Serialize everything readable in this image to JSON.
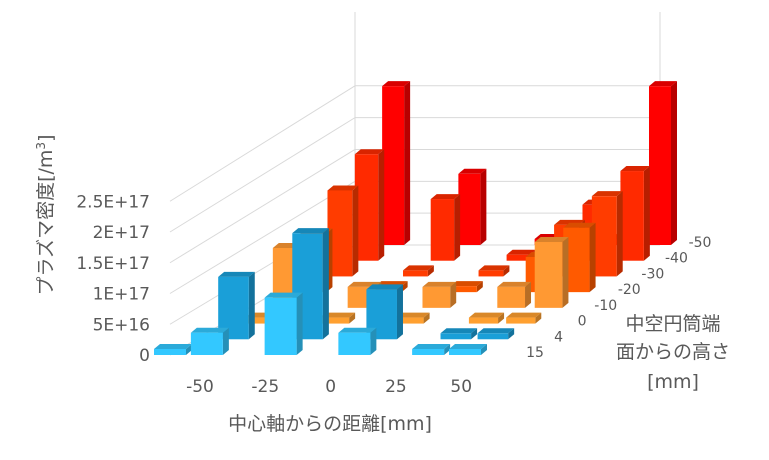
{
  "chart_data": {
    "type": "bar3d",
    "xlabel": "中心軸からの距離[mm]",
    "ylabel_prefix": "プラズマ密度[/m",
    "ylabel_sup": "3",
    "ylabel_suffix": "]",
    "zlabel_lines": [
      "中空円筒端",
      "面からの高さ",
      "[mm]"
    ],
    "x_ticks": [
      "-50",
      "-25",
      "0",
      "25",
      "50"
    ],
    "y_ticks": [
      "0",
      "5E+16",
      "1E+17",
      "1.5E+17",
      "2E+17",
      "2.5E+17"
    ],
    "ylim": [
      0,
      300000000000000000
    ],
    "rows": [
      "-50",
      "-40",
      "-30",
      "-20",
      "-10",
      "0",
      "4",
      "15"
    ],
    "x_positions": [
      -50,
      -37.5,
      -25,
      -12.5,
      0,
      12.5,
      25,
      37.5,
      50
    ],
    "row_colors": [
      "#ff0000",
      "#ff2a00",
      "#ff3c00",
      "#ff5a00",
      "#ff9933",
      "#ffa030",
      "#1a9fd8",
      "#33c8ff"
    ],
    "values": [
      [
        null,
        2.9e+17,
        null,
        1.3e+17,
        null,
        8000000000000000.0,
        null,
        8000000000000000.0,
        2.9e+17
      ],
      [
        null,
        1.9e+17,
        null,
        1.1e+17,
        null,
        8000000000000000.0,
        null,
        1e+17,
        1.6e+17
      ],
      [
        null,
        1.5e+17,
        null,
        8000000000000000.0,
        null,
        8000000000000000.0,
        null,
        9e+16,
        1.4e+17
      ],
      [
        null,
        1e+17,
        null,
        8000000000000000.0,
        null,
        8000000000000000.0,
        null,
        6e+16,
        1.1e+17
      ],
      [
        null,
        1e+17,
        null,
        3.5e+16,
        null,
        3.5e+16,
        null,
        3.5e+16,
        1.1e+17
      ],
      [
        null,
        8000000000000000.0,
        null,
        8000000000000000.0,
        null,
        8000000000000000.0,
        null,
        8000000000000000.0,
        8000000000000000.0
      ],
      [
        null,
        1e+17,
        null,
        1.7e+17,
        null,
        8e+16,
        null,
        8000000000000000.0,
        8000000000000000.0
      ],
      [
        8000000000000000.0,
        3.5e+16,
        null,
        9e+16,
        null,
        3.5e+16,
        null,
        8000000000000000.0,
        8000000000000000.0
      ]
    ]
  }
}
